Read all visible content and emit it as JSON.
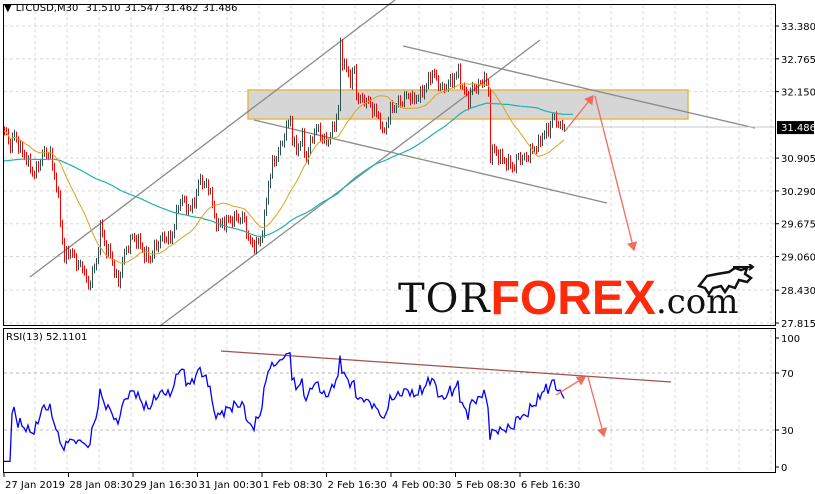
{
  "header": {
    "symbol": "LTCUSD,M30",
    "open": "31.510",
    "high": "31.547",
    "low": "31.462",
    "close": "31.486"
  },
  "rsi_header": {
    "label": "RSI(13)",
    "value": "52.1101"
  },
  "logo": {
    "part1": "TOR",
    "part2": "FOREX",
    "part3": ".com"
  },
  "colors": {
    "bull_bar": "#2f4f4f",
    "bear_bar": "#ff0000",
    "fast_ma": "#daa520",
    "slow_ma": "#20b2aa",
    "rsi_line": "#0000ff",
    "zone_border": "#e8b84a",
    "arrow": "#f26b5b",
    "rsi_trend": "#a0524d"
  },
  "chart_data": [
    {
      "type": "candlestick",
      "title": "LTCUSD,M30",
      "price_ticks": [
        "33.380",
        "32.765",
        "32.150",
        "30.905",
        "30.290",
        "29.675",
        "29.060",
        "28.430",
        "27.815"
      ],
      "current_price": "31.486",
      "x_ticks": [
        "27 Jan 2019",
        "28 Jan 08:30",
        "29 Jan 16:30",
        "31 Jan 00:30",
        "1 Feb 08:30",
        "2 Feb 16:30",
        "4 Feb 00:30",
        "5 Feb 08:30",
        "6 Feb 16:30"
      ],
      "ylim": [
        27.815,
        33.38
      ],
      "grid": true,
      "close_waypoints_bar_price": [
        [
          0,
          31.41
        ],
        [
          3,
          31.15
        ],
        [
          5,
          31.34
        ],
        [
          8,
          31.06
        ],
        [
          10,
          30.96
        ],
        [
          13,
          30.72
        ],
        [
          15,
          30.59
        ],
        [
          18,
          30.87
        ],
        [
          20,
          31.02
        ],
        [
          23,
          30.96
        ],
        [
          25,
          30.59
        ],
        [
          27,
          30.12
        ],
        [
          29,
          29.37
        ],
        [
          30,
          29.0
        ],
        [
          32,
          29.18
        ],
        [
          34,
          29.09
        ],
        [
          37,
          28.9
        ],
        [
          40,
          28.81
        ],
        [
          42,
          28.43
        ],
        [
          44,
          28.81
        ],
        [
          46,
          28.9
        ],
        [
          48,
          29.65
        ],
        [
          50,
          29.28
        ],
        [
          53,
          29.09
        ],
        [
          55,
          28.81
        ],
        [
          57,
          28.53
        ],
        [
          59,
          29.0
        ],
        [
          61,
          29.18
        ],
        [
          63,
          29.37
        ],
        [
          65,
          29.41
        ],
        [
          68,
          29.28
        ],
        [
          70,
          29.09
        ],
        [
          73,
          29.03
        ],
        [
          75,
          29.22
        ],
        [
          78,
          29.37
        ],
        [
          80,
          29.43
        ],
        [
          83,
          29.37
        ],
        [
          85,
          29.65
        ],
        [
          87,
          30.03
        ],
        [
          89,
          30.16
        ],
        [
          90,
          30.03
        ],
        [
          93,
          29.93
        ],
        [
          95,
          30.12
        ],
        [
          98,
          30.53
        ],
        [
          100,
          30.4
        ],
        [
          103,
          30.31
        ],
        [
          105,
          29.74
        ],
        [
          108,
          29.65
        ],
        [
          110,
          29.71
        ],
        [
          113,
          29.74
        ],
        [
          115,
          29.78
        ],
        [
          118,
          29.78
        ],
        [
          120,
          29.74
        ],
        [
          122,
          29.37
        ],
        [
          124,
          29.28
        ],
        [
          126,
          29.28
        ],
        [
          128,
          29.37
        ],
        [
          130,
          29.78
        ],
        [
          132,
          30.44
        ],
        [
          134,
          30.78
        ],
        [
          138,
          31.1
        ],
        [
          141,
          31.47
        ],
        [
          143,
          31.66
        ],
        [
          144,
          31.24
        ],
        [
          146,
          31.06
        ],
        [
          149,
          31.28
        ],
        [
          151,
          30.87
        ],
        [
          154,
          31.34
        ],
        [
          157,
          31.47
        ],
        [
          159,
          31.24
        ],
        [
          162,
          31.24
        ],
        [
          164,
          31.43
        ],
        [
          167,
          31.81
        ],
        [
          168,
          33.02
        ],
        [
          169,
          32.74
        ],
        [
          171,
          32.56
        ],
        [
          173,
          32.37
        ],
        [
          175,
          32.56
        ],
        [
          176,
          32.09
        ],
        [
          178,
          31.99
        ],
        [
          181,
          31.99
        ],
        [
          184,
          31.84
        ],
        [
          188,
          31.62
        ],
        [
          189,
          31.34
        ],
        [
          191,
          31.53
        ],
        [
          193,
          31.81
        ],
        [
          196,
          31.9
        ],
        [
          199,
          31.99
        ],
        [
          202,
          32.09
        ],
        [
          204,
          31.99
        ],
        [
          208,
          32.09
        ],
        [
          211,
          32.27
        ],
        [
          214,
          32.52
        ],
        [
          216,
          32.37
        ],
        [
          219,
          32.18
        ],
        [
          221,
          32.27
        ],
        [
          224,
          32.37
        ],
        [
          227,
          32.52
        ],
        [
          229,
          32.22
        ],
        [
          232,
          31.99
        ],
        [
          234,
          32.22
        ],
        [
          238,
          32.27
        ],
        [
          240,
          32.46
        ],
        [
          242,
          32.09
        ],
        [
          243,
          30.96
        ],
        [
          244,
          31.06
        ],
        [
          247,
          30.96
        ],
        [
          249,
          30.87
        ],
        [
          253,
          30.78
        ],
        [
          255,
          30.72
        ],
        [
          257,
          30.96
        ],
        [
          259,
          30.87
        ],
        [
          262,
          30.96
        ],
        [
          264,
          31.06
        ],
        [
          267,
          31.15
        ],
        [
          269,
          31.34
        ],
        [
          272,
          31.43
        ],
        [
          274,
          31.66
        ],
        [
          276,
          31.62
        ],
        [
          278,
          31.47
        ],
        [
          280,
          31.486
        ]
      ],
      "resistance_zone": [
        31.64,
        32.18
      ]
    },
    {
      "type": "line",
      "title": "RSI(13)",
      "period": 13,
      "current_value": 52.1101,
      "y_ticks": [
        "100",
        "70",
        "30",
        "0"
      ],
      "ylim": [
        0,
        100
      ],
      "levels": [
        70,
        30
      ]
    }
  ]
}
